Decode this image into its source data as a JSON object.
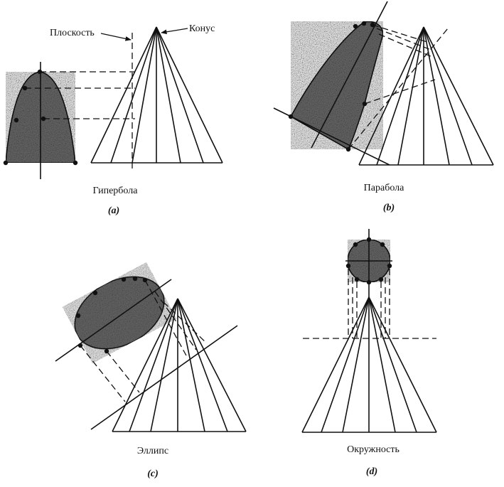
{
  "panels": {
    "a": {
      "caption": "Гипербола",
      "sublabel": "(a)",
      "plane_label": "Плоскость",
      "cone_label": "Конус"
    },
    "b": {
      "caption": "Парабола",
      "sublabel": "(b)"
    },
    "c": {
      "caption": "Эллипс",
      "sublabel": "(c)"
    },
    "d": {
      "caption": "Окружность",
      "sublabel": "(d)"
    }
  },
  "colors": {
    "line": "#111111",
    "section_fill": "#6e6e6e",
    "background": "#ffffff"
  }
}
